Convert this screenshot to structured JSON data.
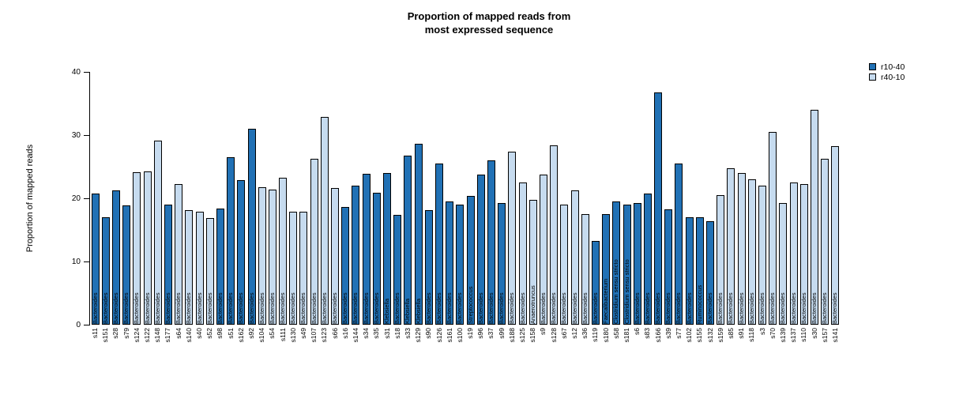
{
  "title": {
    "line1": "Proportion of mapped reads from",
    "line2": "most expressed sequence"
  },
  "y_axis": {
    "label": "Proportion of mapped reads",
    "ticks": [
      0,
      10,
      20,
      30,
      40
    ]
  },
  "legend": [
    {
      "label": "r10-40",
      "color": "#2171B5"
    },
    {
      "label": "r40-10",
      "color": "#C6DBEF"
    }
  ],
  "chart_data": {
    "type": "bar",
    "title": "Proportion of mapped reads from most expressed sequence",
    "xlabel": "",
    "ylabel": "Proportion of mapped reads",
    "ylim": [
      0,
      40
    ],
    "grid": false,
    "legend_position": "top-right",
    "groups": {
      "r10-40": "#2171B5",
      "r40-10": "#C6DBEF"
    },
    "bars": [
      {
        "sample": "s11",
        "value": 20.7,
        "group": "r10-40",
        "taxon": "Bacteroides"
      },
      {
        "sample": "s151",
        "value": 17.0,
        "group": "r10-40",
        "taxon": "Bacteroides"
      },
      {
        "sample": "s28",
        "value": 21.2,
        "group": "r10-40",
        "taxon": "Bacteroides"
      },
      {
        "sample": "s79",
        "value": 18.9,
        "group": "r10-40",
        "taxon": "Bacteroides"
      },
      {
        "sample": "s124",
        "value": 24.1,
        "group": "r40-10",
        "taxon": "Bacteroides"
      },
      {
        "sample": "s122",
        "value": 24.2,
        "group": "r40-10",
        "taxon": "Bacteroides"
      },
      {
        "sample": "s148",
        "value": 29.1,
        "group": "r40-10",
        "taxon": "Bacteroides"
      },
      {
        "sample": "s177",
        "value": 19.0,
        "group": "r10-40",
        "taxon": "Bacteroides"
      },
      {
        "sample": "s64",
        "value": 22.2,
        "group": "r40-10",
        "taxon": "Bacteroides"
      },
      {
        "sample": "s140",
        "value": 18.1,
        "group": "r40-10",
        "taxon": "Bacteroides"
      },
      {
        "sample": "s40",
        "value": 17.9,
        "group": "r40-10",
        "taxon": "Bacteroides"
      },
      {
        "sample": "s52",
        "value": 16.9,
        "group": "r40-10",
        "taxon": "Bacteroides"
      },
      {
        "sample": "s98",
        "value": 18.4,
        "group": "r10-40",
        "taxon": "Bacteroides"
      },
      {
        "sample": "s51",
        "value": 26.5,
        "group": "r10-40",
        "taxon": "Bacteroides"
      },
      {
        "sample": "s162",
        "value": 22.9,
        "group": "r10-40",
        "taxon": "Bacteroides"
      },
      {
        "sample": "s92",
        "value": 31.0,
        "group": "r10-40",
        "taxon": "Bacteroides"
      },
      {
        "sample": "s104",
        "value": 21.8,
        "group": "r40-10",
        "taxon": "Bacteroides"
      },
      {
        "sample": "s54",
        "value": 21.4,
        "group": "r40-10",
        "taxon": "Bacteroides"
      },
      {
        "sample": "s111",
        "value": 23.2,
        "group": "r40-10",
        "taxon": "Bacteroides"
      },
      {
        "sample": "s130",
        "value": 17.9,
        "group": "r40-10",
        "taxon": "Bacteroides"
      },
      {
        "sample": "s49",
        "value": 17.9,
        "group": "r40-10",
        "taxon": "Bacteroides"
      },
      {
        "sample": "s107",
        "value": 26.2,
        "group": "r40-10",
        "taxon": "Bacteroides"
      },
      {
        "sample": "s123",
        "value": 32.9,
        "group": "r40-10",
        "taxon": "Bacteroides"
      },
      {
        "sample": "s66",
        "value": 21.6,
        "group": "r40-10",
        "taxon": "Bacteroides"
      },
      {
        "sample": "s16",
        "value": 18.6,
        "group": "r10-40",
        "taxon": "Bacteroides"
      },
      {
        "sample": "s144",
        "value": 22.0,
        "group": "r10-40",
        "taxon": "Bacteroides"
      },
      {
        "sample": "s34",
        "value": 23.9,
        "group": "r10-40",
        "taxon": "Bacteroides"
      },
      {
        "sample": "s35",
        "value": 20.9,
        "group": "r10-40",
        "taxon": "Bacteroides"
      },
      {
        "sample": "s31",
        "value": 24.0,
        "group": "r10-40",
        "taxon": "Klebsiella"
      },
      {
        "sample": "s18",
        "value": 17.4,
        "group": "r10-40",
        "taxon": "Bacteroides"
      },
      {
        "sample": "s33",
        "value": 26.7,
        "group": "r10-40",
        "taxon": "Klebsiella"
      },
      {
        "sample": "s129",
        "value": 28.6,
        "group": "r10-40",
        "taxon": "Klebsiella"
      },
      {
        "sample": "s90",
        "value": 18.1,
        "group": "r10-40",
        "taxon": "Bacteroides"
      },
      {
        "sample": "s126",
        "value": 25.5,
        "group": "r10-40",
        "taxon": "Bacteroides"
      },
      {
        "sample": "s161",
        "value": 19.5,
        "group": "r10-40",
        "taxon": "Bacteroides"
      },
      {
        "sample": "s100",
        "value": 19.0,
        "group": "r10-40",
        "taxon": "Bacteroides"
      },
      {
        "sample": "s19",
        "value": 20.4,
        "group": "r10-40",
        "taxon": "Streptococcus"
      },
      {
        "sample": "s96",
        "value": 23.8,
        "group": "r10-40",
        "taxon": "Bacteroides"
      },
      {
        "sample": "s37",
        "value": 26.0,
        "group": "r10-40",
        "taxon": "Bacteroides"
      },
      {
        "sample": "s99",
        "value": 19.3,
        "group": "r10-40",
        "taxon": "Bacteroides"
      },
      {
        "sample": "s188",
        "value": 27.4,
        "group": "r40-10",
        "taxon": "Bacteroides"
      },
      {
        "sample": "s125",
        "value": 22.5,
        "group": "r40-10",
        "taxon": "Bacteroides"
      },
      {
        "sample": "s158",
        "value": 19.8,
        "group": "r40-10",
        "taxon": "Anaerotruncus"
      },
      {
        "sample": "s9",
        "value": 23.8,
        "group": "r40-10",
        "taxon": "Bacteroides"
      },
      {
        "sample": "s128",
        "value": 28.4,
        "group": "r40-10",
        "taxon": "Bacteroides"
      },
      {
        "sample": "s67",
        "value": 19.0,
        "group": "r40-10",
        "taxon": "Bacteroides"
      },
      {
        "sample": "s12",
        "value": 21.2,
        "group": "r40-10",
        "taxon": "Bacteroides"
      },
      {
        "sample": "s36",
        "value": 17.5,
        "group": "r40-10",
        "taxon": "Bacteroides"
      },
      {
        "sample": "s119",
        "value": 13.2,
        "group": "r10-40",
        "taxon": "Bacteroides"
      },
      {
        "sample": "s180",
        "value": 17.5,
        "group": "r10-40",
        "taxon": "Faecalibacterium"
      },
      {
        "sample": "s58",
        "value": 19.5,
        "group": "r10-40",
        "taxon": "Clostridium sensu stricto"
      },
      {
        "sample": "s181",
        "value": 19.0,
        "group": "r10-40",
        "taxon": "Clostridium sensu stricto"
      },
      {
        "sample": "s6",
        "value": 19.3,
        "group": "r10-40",
        "taxon": "Bacteroides"
      },
      {
        "sample": "s83",
        "value": 20.7,
        "group": "r10-40",
        "taxon": "Bacteroides"
      },
      {
        "sample": "s166",
        "value": 36.8,
        "group": "r10-40",
        "taxon": "Bacteroides"
      },
      {
        "sample": "s39",
        "value": 18.3,
        "group": "r10-40",
        "taxon": "Bacteroides"
      },
      {
        "sample": "s77",
        "value": 25.5,
        "group": "r10-40",
        "taxon": "Bacteroides"
      },
      {
        "sample": "s102",
        "value": 17.0,
        "group": "r10-40",
        "taxon": "Bacteroides"
      },
      {
        "sample": "s155",
        "value": 17.0,
        "group": "r10-40",
        "taxon": "Ruminococcus"
      },
      {
        "sample": "s132",
        "value": 16.4,
        "group": "r10-40",
        "taxon": "Bacteroides"
      },
      {
        "sample": "s159",
        "value": 20.5,
        "group": "r40-10",
        "taxon": "Bacteroides"
      },
      {
        "sample": "s85",
        "value": 24.8,
        "group": "r40-10",
        "taxon": "Bacteroides"
      },
      {
        "sample": "s91",
        "value": 24.0,
        "group": "r40-10",
        "taxon": "Bacteroides"
      },
      {
        "sample": "s118",
        "value": 23.0,
        "group": "r40-10",
        "taxon": "Bacteroides"
      },
      {
        "sample": "s3",
        "value": 22.0,
        "group": "r40-10",
        "taxon": "Bacteroides"
      },
      {
        "sample": "s70",
        "value": 30.5,
        "group": "r40-10",
        "taxon": "Bacteroides"
      },
      {
        "sample": "s139",
        "value": 19.2,
        "group": "r40-10",
        "taxon": "Bacteroides"
      },
      {
        "sample": "s137",
        "value": 22.5,
        "group": "r40-10",
        "taxon": "Bacteroides"
      },
      {
        "sample": "s110",
        "value": 22.3,
        "group": "r40-10",
        "taxon": "Bacteroides"
      },
      {
        "sample": "s30",
        "value": 34.0,
        "group": "r40-10",
        "taxon": "Bacteroides"
      },
      {
        "sample": "s157",
        "value": 26.3,
        "group": "r40-10",
        "taxon": "Bacteroides"
      },
      {
        "sample": "s141",
        "value": 28.3,
        "group": "r40-10",
        "taxon": "Bacteroides"
      }
    ]
  }
}
